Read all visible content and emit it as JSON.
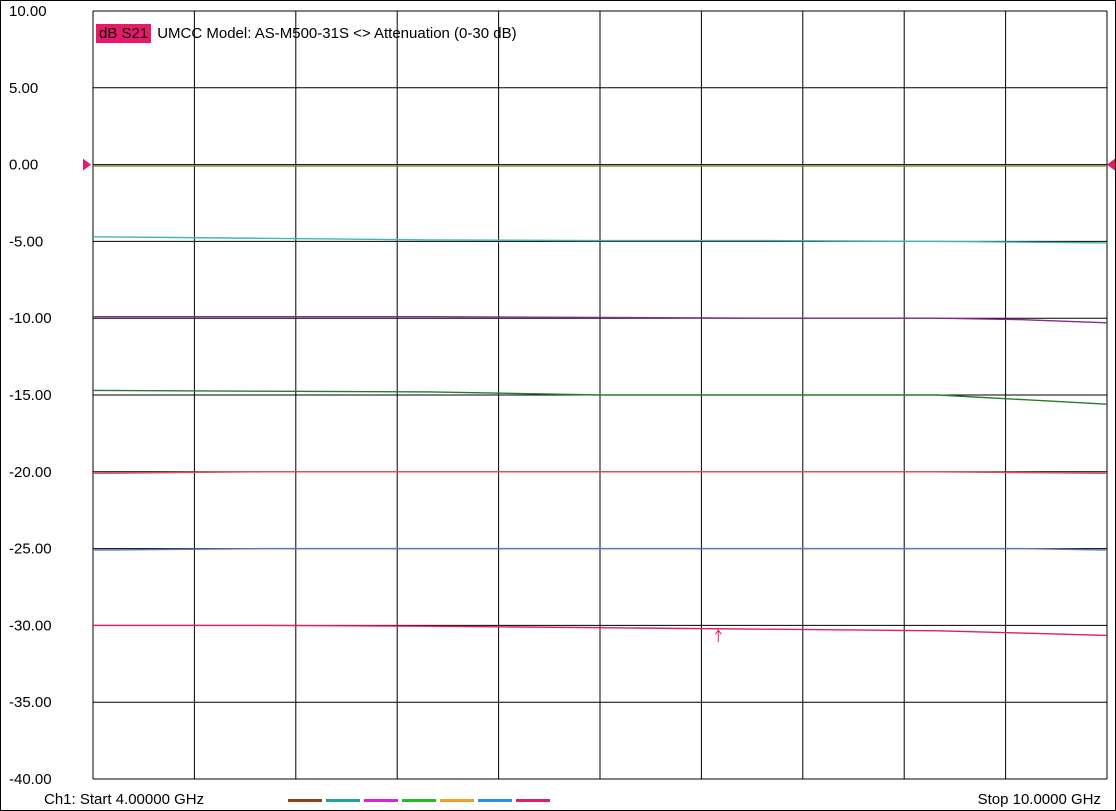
{
  "chart_data": {
    "type": "line",
    "title": "UMCC  Model: AS-M500-31S <> Attenuation (0-30 dB)",
    "measurement": "dB S21",
    "xlabel": "",
    "ylabel": "",
    "xlim": [
      4.0,
      10.0
    ],
    "ylim": [
      -40.0,
      10.0
    ],
    "y_ticks": [
      "10.00",
      "5.00",
      "0.00",
      "-5.00",
      "-10.00",
      "-15.00",
      "-20.00",
      "-25.00",
      "-30.00",
      "-35.00",
      "-40.00"
    ],
    "grid": true,
    "reference_level": 0.0,
    "series": [
      {
        "color": "#8a8a2e",
        "x": [
          4.0,
          10.0
        ],
        "y": [
          -0.1,
          -0.1
        ]
      },
      {
        "color": "#3fb6b6",
        "x": [
          4.0,
          5.0,
          6.0,
          7.0,
          8.0,
          9.0,
          10.0
        ],
        "y": [
          -4.7,
          -4.8,
          -4.9,
          -4.95,
          -4.95,
          -5.0,
          -5.1
        ]
      },
      {
        "color": "#8a2a8a",
        "x": [
          4.0,
          5.0,
          6.0,
          7.0,
          8.0,
          9.0,
          9.5,
          10.0
        ],
        "y": [
          -9.9,
          -9.9,
          -9.9,
          -9.95,
          -10.0,
          -10.0,
          -10.1,
          -10.3
        ]
      },
      {
        "color": "#2a7a2a",
        "x": [
          4.0,
          5.0,
          6.0,
          7.0,
          8.0,
          9.0,
          9.5,
          10.0
        ],
        "y": [
          -14.7,
          -14.75,
          -14.8,
          -15.0,
          -15.0,
          -15.0,
          -15.3,
          -15.6
        ]
      },
      {
        "color": "#e0504a",
        "x": [
          4.0,
          5.0,
          6.0,
          7.0,
          8.0,
          9.0,
          10.0
        ],
        "y": [
          -20.1,
          -20.0,
          -20.0,
          -20.0,
          -20.0,
          -20.0,
          -20.1
        ]
      },
      {
        "color": "#5a74c4",
        "x": [
          4.0,
          5.0,
          6.0,
          7.0,
          8.0,
          9.0,
          9.5,
          10.0
        ],
        "y": [
          -25.1,
          -25.0,
          -25.0,
          -25.0,
          -25.0,
          -25.0,
          -25.0,
          -25.1
        ]
      },
      {
        "color": "#e8186a",
        "x": [
          4.0,
          5.0,
          6.0,
          7.0,
          8.0,
          9.0,
          9.5,
          10.0
        ],
        "y": [
          -30.0,
          -30.0,
          -30.05,
          -30.15,
          -30.25,
          -30.35,
          -30.5,
          -30.65
        ]
      }
    ],
    "marker": {
      "x": 7.7,
      "y": -30.05
    },
    "legend_colors": [
      "#8b4513",
      "#20a0a0",
      "#e020e0",
      "#20c020",
      "#f0a020",
      "#3090e0",
      "#e8186a"
    ]
  },
  "footer": {
    "start": "Ch1: Start  4.00000 GHz",
    "stop": "Stop  10.0000 GHz"
  }
}
